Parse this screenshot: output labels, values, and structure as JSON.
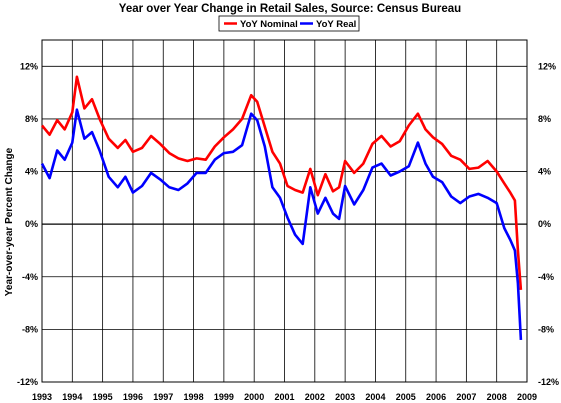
{
  "chart_data": {
    "type": "line",
    "title": "Year over Year Change in Retail Sales, Source: Census Bureau",
    "xlabel": "",
    "ylabel": "Year-over-year Percent Change",
    "xlim": [
      1993,
      2009
    ],
    "ylim": [
      -12,
      14
    ],
    "x_ticks": [
      "1993",
      "1994",
      "1995",
      "1996",
      "1997",
      "1998",
      "1999",
      "2000",
      "2001",
      "2002",
      "2003",
      "2004",
      "2005",
      "2006",
      "2007",
      "2008",
      "2009"
    ],
    "y_ticks": [
      "12%",
      "8%",
      "4%",
      "0%",
      "-4%",
      "-8%",
      "-12%"
    ],
    "y_tick_values": [
      12,
      8,
      4,
      0,
      -4,
      -8,
      -12
    ],
    "grid": true,
    "legend_position": "top-center",
    "series": [
      {
        "name": "YoY Nominal",
        "color": "#ff0000",
        "x": [
          1993.0,
          1993.25,
          1993.5,
          1993.75,
          1994.0,
          1994.15,
          1994.4,
          1994.65,
          1994.9,
          1995.2,
          1995.5,
          1995.75,
          1996.0,
          1996.3,
          1996.6,
          1996.9,
          1997.2,
          1997.5,
          1997.8,
          1998.1,
          1998.4,
          1998.7,
          1999.0,
          1999.3,
          1999.6,
          1999.9,
          2000.1,
          2000.35,
          2000.6,
          2000.85,
          2001.1,
          2001.35,
          2001.6,
          2001.85,
          2002.1,
          2002.35,
          2002.6,
          2002.8,
          2003.0,
          2003.3,
          2003.6,
          2003.9,
          2004.2,
          2004.5,
          2004.8,
          2005.1,
          2005.4,
          2005.65,
          2005.9,
          2006.2,
          2006.5,
          2006.8,
          2007.1,
          2007.4,
          2007.7,
          2008.0,
          2008.25,
          2008.45,
          2008.6,
          2008.7,
          2008.8
        ],
        "values": [
          7.5,
          6.8,
          7.9,
          7.2,
          8.5,
          11.2,
          8.8,
          9.5,
          8.0,
          6.5,
          5.8,
          6.4,
          5.5,
          5.8,
          6.7,
          6.1,
          5.4,
          5.0,
          4.8,
          5.0,
          4.9,
          5.9,
          6.6,
          7.2,
          8.0,
          9.8,
          9.3,
          7.4,
          5.5,
          4.6,
          2.9,
          2.6,
          2.4,
          4.2,
          2.2,
          3.8,
          2.5,
          2.8,
          4.8,
          3.9,
          4.6,
          6.1,
          6.7,
          5.9,
          6.3,
          7.5,
          8.4,
          7.2,
          6.6,
          6.1,
          5.2,
          4.9,
          4.2,
          4.3,
          4.8,
          4.0,
          3.1,
          2.4,
          1.8,
          -2.0,
          -5.0
        ]
      },
      {
        "name": "YoY Real",
        "color": "#0000ff",
        "x": [
          1993.0,
          1993.25,
          1993.5,
          1993.75,
          1994.0,
          1994.15,
          1994.4,
          1994.65,
          1994.9,
          1995.2,
          1995.5,
          1995.75,
          1996.0,
          1996.3,
          1996.6,
          1996.9,
          1997.2,
          1997.5,
          1997.8,
          1998.1,
          1998.4,
          1998.7,
          1999.0,
          1999.3,
          1999.6,
          1999.9,
          2000.1,
          2000.35,
          2000.6,
          2000.85,
          2001.1,
          2001.35,
          2001.6,
          2001.85,
          2002.1,
          2002.35,
          2002.6,
          2002.8,
          2003.0,
          2003.3,
          2003.6,
          2003.9,
          2004.2,
          2004.5,
          2004.8,
          2005.1,
          2005.4,
          2005.65,
          2005.9,
          2006.2,
          2006.5,
          2006.8,
          2007.1,
          2007.4,
          2007.7,
          2008.0,
          2008.25,
          2008.45,
          2008.6,
          2008.7,
          2008.8
        ],
        "values": [
          4.6,
          3.5,
          5.6,
          4.9,
          6.2,
          8.7,
          6.5,
          7.0,
          5.6,
          3.6,
          2.8,
          3.6,
          2.4,
          2.9,
          3.9,
          3.4,
          2.8,
          2.6,
          3.1,
          3.9,
          3.9,
          4.9,
          5.4,
          5.5,
          6.0,
          8.4,
          7.9,
          5.9,
          2.8,
          2.0,
          0.5,
          -0.8,
          -1.5,
          2.8,
          0.8,
          2.0,
          0.8,
          0.4,
          2.9,
          1.5,
          2.6,
          4.3,
          4.6,
          3.7,
          4.0,
          4.4,
          6.2,
          4.6,
          3.6,
          3.2,
          2.1,
          1.6,
          2.1,
          2.3,
          2.0,
          1.6,
          -0.3,
          -1.2,
          -2.0,
          -4.5,
          -8.8
        ]
      }
    ]
  }
}
